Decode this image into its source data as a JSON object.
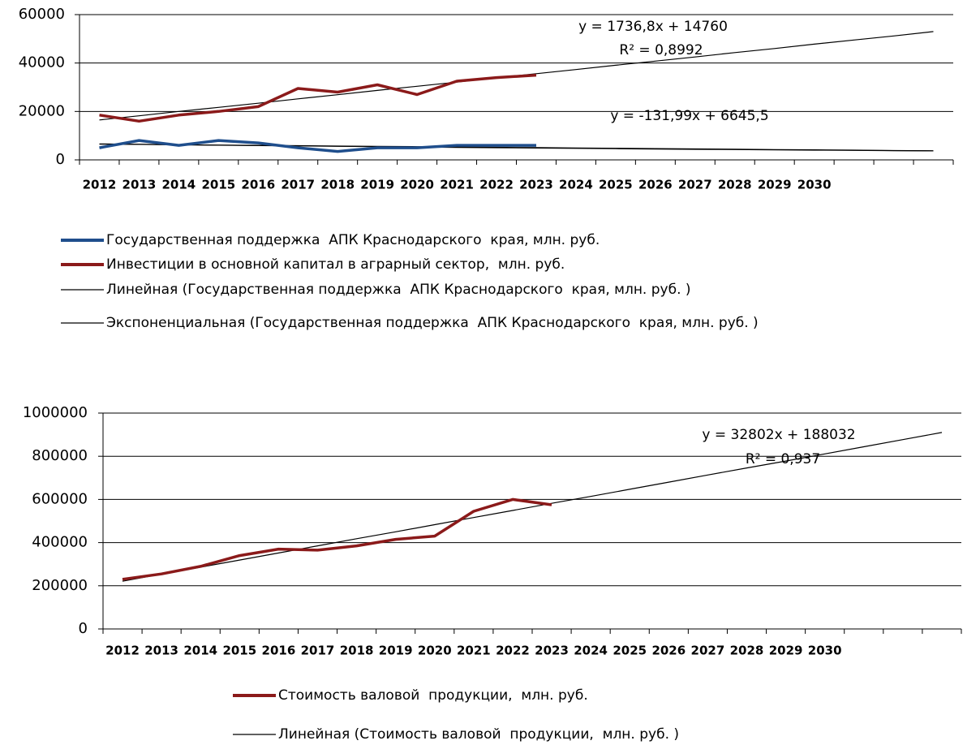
{
  "chart_data": [
    {
      "type": "line",
      "categories": [
        "2012",
        "2013",
        "2014",
        "2015",
        "2016",
        "2017",
        "2018",
        "2019",
        "2020",
        "2021",
        "2022",
        "2023",
        "2024",
        "2025",
        "2026",
        "2027",
        "2028",
        "2029",
        "2030",
        null,
        null,
        null
      ],
      "ylim": [
        0,
        60000
      ],
      "yticks": [
        0,
        20000,
        40000,
        60000
      ],
      "grid": true,
      "series": [
        {
          "name": "Государственная поддержка  АПК Краснодарского  края, млн. руб.",
          "color": "#1f4e8c",
          "values": [
            5000,
            8000,
            6000,
            8000,
            7000,
            5000,
            3500,
            5000,
            5000,
            6000,
            6000,
            6000,
            null,
            null,
            null,
            null,
            null,
            null,
            null,
            null,
            null,
            null
          ]
        },
        {
          "name": "Инвестиции в основной капитал в аграрный сектор,  млн. руб.",
          "color": "#8b1a1a",
          "values": [
            18500,
            16000,
            18500,
            20000,
            22000,
            29500,
            28000,
            31000,
            27000,
            32500,
            34000,
            35000,
            null,
            null,
            null,
            null,
            null,
            null,
            null,
            null,
            null,
            null
          ]
        },
        {
          "name": "Линейная (Государственная поддержка  АПК Краснодарского  края, млн. руб. )",
          "color": "#000000",
          "values": [
            6500,
            6400,
            6250,
            6100,
            6000,
            5850,
            5700,
            5590,
            5460,
            5330,
            5190,
            5060,
            4930,
            4800,
            4670,
            4540,
            4400,
            4270,
            4140,
            4010,
            3870,
            3740
          ]
        },
        {
          "name": "Экспоненциальная (Государственная поддержка  АПК Краснодарского  края, млн. руб. )",
          "color": "#000000",
          "values": [
            6600,
            6420,
            6250,
            6080,
            5910,
            5750,
            5600,
            5450,
            5300,
            5160,
            5020,
            4880,
            4750,
            4620,
            4500,
            4370,
            4260,
            4140,
            4030,
            3920,
            3810,
            3710
          ]
        },
        {
          "color": "#000000",
          "values": [
            16500,
            18200,
            20000,
            21700,
            23400,
            25200,
            26900,
            28700,
            30400,
            32100,
            33900,
            35600,
            37300,
            39100,
            40800,
            42500,
            44300,
            46000,
            47800,
            49500,
            51200,
            53000
          ]
        }
      ],
      "annotations": [
        "y = 1736,8x + 14760",
        "R² = 0,8992",
        "y = -131,99x + 6645,5"
      ]
    },
    {
      "type": "line",
      "categories": [
        "2012",
        "2013",
        "2014",
        "2015",
        "2016",
        "2017",
        "2018",
        "2019",
        "2020",
        "2021",
        "2022",
        "2023",
        "2024",
        "2025",
        "2026",
        "2027",
        "2028",
        "2029",
        "2030",
        null,
        null,
        null
      ],
      "ylim": [
        0,
        1000000
      ],
      "yticks": [
        0,
        200000,
        400000,
        600000,
        800000,
        1000000
      ],
      "grid": true,
      "series": [
        {
          "name": "Стоимость валовой  продукции,  млн. руб.",
          "color": "#8b1a1a",
          "values": [
            230000,
            255000,
            290000,
            340000,
            370000,
            365000,
            385000,
            415000,
            430000,
            545000,
            600000,
            575000,
            null,
            null,
            null,
            null,
            null,
            null,
            null,
            null,
            null,
            null
          ]
        },
        {
          "name": "Линейная (Стоимость валовой  продукции,  млн. руб. )",
          "color": "#000000",
          "values": [
            221000,
            254000,
            286000,
            319000,
            352000,
            385000,
            418000,
            450000,
            483000,
            516000,
            549000,
            582000,
            614000,
            647000,
            680000,
            713000,
            746000,
            778000,
            811000,
            844000,
            877000,
            910000
          ]
        }
      ],
      "annotations": [
        "y = 32802x + 188032",
        "R² = 0,937"
      ]
    }
  ]
}
